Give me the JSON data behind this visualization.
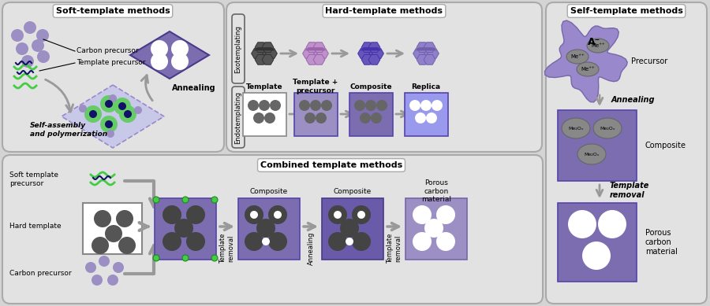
{
  "bg_color": "#d4d4d4",
  "panel_bg": "#e2e2e2",
  "purple_light": "#9b8fc4",
  "purple_mid": "#7b6db0",
  "purple_dark": "#4a3a8a",
  "purple_blob": "#9080c8",
  "gray_dark": "#555555",
  "gray_circ": "#666666",
  "green_color": "#44cc44",
  "blue_dark": "#111166",
  "white": "#ffffff",
  "arrow_gray": "#999999",
  "title_soft": "Soft-template methods",
  "title_hard": "Hard-template methods",
  "title_self": "Self-template methods",
  "title_combined": "Combined template methods",
  "label_carbon": "Carbon precursor",
  "label_template_prec": "Template precursor",
  "label_annealing": "Annealing",
  "label_selfassembly": "Self-assembly\nand polymerization",
  "label_exo": "Exotemplating",
  "label_endo": "Endotemplating",
  "label_template_h": "Template",
  "label_template_plus": "Template +\nprecursor",
  "label_composite": "Composite",
  "label_replica": "Replica",
  "label_precursor_self": "Precursor",
  "label_annealing_self": "Annealing",
  "label_composite_self": "Composite",
  "label_template_removal_self": "Template\nremoval",
  "label_porous_self": "Porous\ncarbon\nmaterial",
  "label_soft_precursor": "Soft template\nprecursor",
  "label_hard_template": "Hard template",
  "label_carbon_c": "Carbon precursor",
  "label_composite_c1": "Composite",
  "label_composite_c2": "Composite",
  "label_porous_c": "Porous\ncarbon\nmaterial",
  "label_template_rem1": "Template\nremoval",
  "label_annealing_c": "Annealing",
  "label_template_rem2": "Template\nremoval"
}
